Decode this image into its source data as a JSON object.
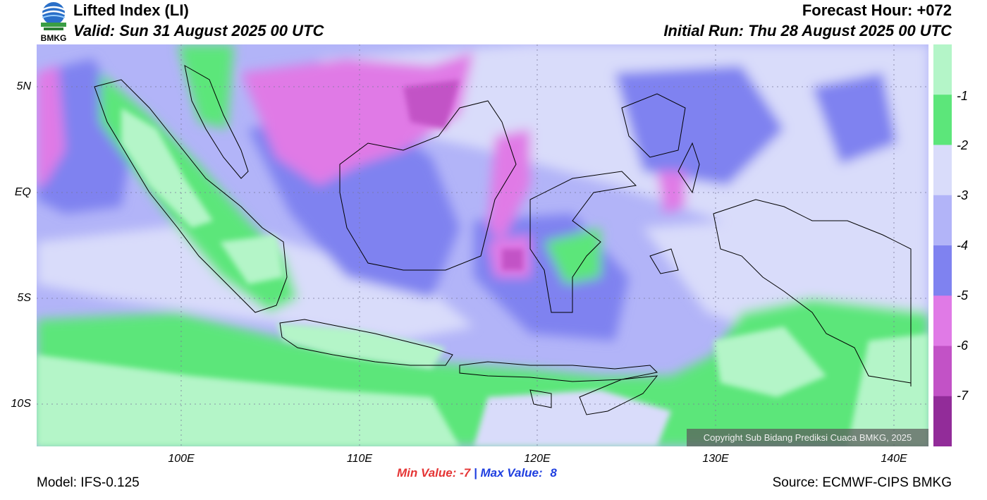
{
  "header": {
    "title": "Lifted Index (LI)",
    "valid": "Valid: Sun 31 August 2025 00 UTC",
    "forecast_hour": "Forecast Hour: +072",
    "initial_run": "Initial Run: Thu 28 August 2025 00 UTC"
  },
  "logo": {
    "text": "BMKG"
  },
  "map": {
    "y_ticks": [
      "5N",
      "EQ",
      "5S",
      "10S"
    ],
    "x_ticks": [
      "100E",
      "110E",
      "120E",
      "130E",
      "140E"
    ],
    "copyright": "Copyright Sub Bidang Prediksi Cuaca BMKG, 2025"
  },
  "colorbar": {
    "labels": [
      "-1",
      "-2",
      "-3",
      "-4",
      "-5",
      "-6",
      "-7"
    ],
    "colors": [
      "#b4f5c8",
      "#5ce67a",
      "#d9dcfa",
      "#b2b4f8",
      "#7f82f0",
      "#e07ae6",
      "#c252c6",
      "#922c99"
    ]
  },
  "stats": {
    "min_label": "Min Value:",
    "min_value": "-7",
    "separator": "|",
    "max_label": "Max Value:",
    "max_value": "8",
    "min_color": "#e53535",
    "max_color": "#1f3fe0"
  },
  "footer": {
    "model": "Model: IFS-0.125",
    "source": "Source: ECMWF-CIPS BMKG"
  }
}
